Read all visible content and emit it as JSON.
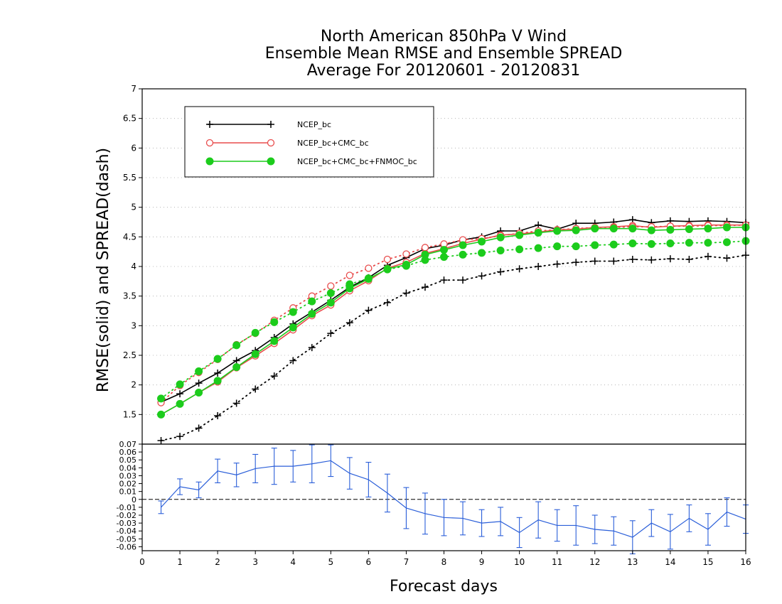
{
  "chart_data": [
    {
      "type": "line",
      "title": [
        "North American 850hPa V Wind",
        "Ensemble Mean RMSE and Ensemble SPREAD",
        "Average For 20120601 - 20120831"
      ],
      "ylabel": "RMSE(solid) and SPREAD(dash)",
      "xlim": [
        0,
        16
      ],
      "ylim": [
        1,
        7
      ],
      "yticks": [
        "1.5",
        "2",
        "2.5",
        "3",
        "3.5",
        "4",
        "4.5",
        "5",
        "5.5",
        "6",
        "6.5",
        "7"
      ],
      "grid": true,
      "legend_position": "top-left",
      "x": [
        0.5,
        1,
        1.5,
        2,
        2.5,
        3,
        3.5,
        4,
        4.5,
        5,
        5.5,
        6,
        6.5,
        7,
        7.5,
        8,
        8.5,
        9,
        9.5,
        10,
        10.5,
        11,
        11.5,
        12,
        12.5,
        13,
        13.5,
        14,
        14.5,
        15,
        15.5,
        16
      ],
      "series": [
        {
          "name": "NCEP_bc",
          "color": "#000000",
          "marker": "plus",
          "rmse": [
            1.71,
            1.85,
            2.03,
            2.2,
            2.41,
            2.58,
            2.8,
            3.03,
            3.23,
            3.43,
            3.65,
            3.81,
            4.02,
            4.15,
            4.3,
            4.36,
            4.45,
            4.5,
            4.6,
            4.6,
            4.7,
            4.63,
            4.73,
            4.73,
            4.75,
            4.79,
            4.74,
            4.77,
            4.76,
            4.77,
            4.76,
            4.74
          ],
          "spread": [
            1.06,
            1.13,
            1.27,
            1.48,
            1.69,
            1.93,
            2.15,
            2.41,
            2.63,
            2.87,
            3.05,
            3.26,
            3.39,
            3.55,
            3.65,
            3.77,
            3.77,
            3.84,
            3.91,
            3.96,
            4.0,
            4.04,
            4.07,
            4.09,
            4.09,
            4.12,
            4.11,
            4.13,
            4.12,
            4.17,
            4.14,
            4.19
          ]
        },
        {
          "name": "NCEP_bc+CMC_bc",
          "color": "#e84c4c",
          "marker": "open-circle",
          "rmse": [
            1.5,
            1.68,
            1.87,
            2.05,
            2.29,
            2.49,
            2.7,
            2.93,
            3.17,
            3.35,
            3.59,
            3.76,
            3.97,
            4.07,
            4.22,
            4.3,
            4.39,
            4.46,
            4.53,
            4.55,
            4.58,
            4.62,
            4.63,
            4.66,
            4.67,
            4.69,
            4.66,
            4.68,
            4.69,
            4.7,
            4.7,
            4.7
          ],
          "spread": [
            1.7,
            1.99,
            2.21,
            2.43,
            2.68,
            2.87,
            3.09,
            3.3,
            3.5,
            3.67,
            3.85,
            3.97,
            4.12,
            4.21,
            4.32,
            4.38,
            4.45,
            4.47,
            4.52,
            4.56,
            4.6,
            4.62,
            4.64,
            4.66,
            4.66,
            4.67,
            4.67,
            4.68,
            4.68,
            4.69,
            4.69,
            4.7
          ]
        },
        {
          "name": "NCEP_bc+CMC_bc+FNMOC_bc",
          "color": "#1ccc1c",
          "marker": "filled-circle",
          "rmse": [
            1.5,
            1.68,
            1.87,
            2.07,
            2.3,
            2.52,
            2.74,
            2.97,
            3.2,
            3.39,
            3.63,
            3.79,
            3.96,
            4.03,
            4.2,
            4.28,
            4.36,
            4.42,
            4.49,
            4.53,
            4.57,
            4.6,
            4.61,
            4.64,
            4.64,
            4.64,
            4.61,
            4.62,
            4.63,
            4.64,
            4.66,
            4.66
          ],
          "spread": [
            1.77,
            2.01,
            2.23,
            2.44,
            2.67,
            2.88,
            3.06,
            3.23,
            3.41,
            3.55,
            3.7,
            3.8,
            3.95,
            4.01,
            4.11,
            4.16,
            4.2,
            4.23,
            4.27,
            4.29,
            4.31,
            4.34,
            4.34,
            4.36,
            4.37,
            4.39,
            4.38,
            4.39,
            4.4,
            4.4,
            4.41,
            4.43
          ]
        }
      ]
    },
    {
      "type": "line",
      "xlabel": "Forecast days",
      "xlim": [
        0,
        16
      ],
      "xticks": [
        "0",
        "1",
        "2",
        "3",
        "4",
        "5",
        "6",
        "7",
        "8",
        "9",
        "10",
        "11",
        "12",
        "13",
        "14",
        "15",
        "16"
      ],
      "ylim": [
        -0.065,
        0.07
      ],
      "yticks": [
        "0.07",
        "0.06",
        "0.05",
        "0.04",
        "0.03",
        "0.02",
        "0.01",
        "0",
        "-0.01",
        "-0.02",
        "-0.03",
        "-0.04",
        "-0.05",
        "-0.06"
      ],
      "zero_line": "dashed",
      "series": [
        {
          "color": "#2b5fd9",
          "x": [
            0.5,
            1,
            1.5,
            2,
            2.5,
            3,
            3.5,
            4,
            4.5,
            5,
            5.5,
            6,
            6.5,
            7,
            7.5,
            8,
            8.5,
            9,
            9.5,
            10,
            10.5,
            11,
            11.5,
            12,
            12.5,
            13,
            13.5,
            14,
            14.5,
            15,
            15.5,
            16
          ],
          "values": [
            -0.01,
            0.016,
            0.012,
            0.036,
            0.031,
            0.039,
            0.042,
            0.042,
            0.045,
            0.049,
            0.033,
            0.025,
            0.008,
            -0.011,
            -0.018,
            -0.023,
            -0.024,
            -0.03,
            -0.028,
            -0.042,
            -0.026,
            -0.033,
            -0.033,
            -0.038,
            -0.04,
            -0.048,
            -0.03,
            -0.041,
            -0.024,
            -0.038,
            -0.016,
            -0.025
          ],
          "error": [
            0.008,
            0.01,
            0.01,
            0.015,
            0.015,
            0.018,
            0.023,
            0.02,
            0.024,
            0.02,
            0.02,
            0.022,
            0.024,
            0.026,
            0.026,
            0.023,
            0.021,
            0.017,
            0.018,
            0.019,
            0.023,
            0.02,
            0.025,
            0.018,
            0.018,
            0.021,
            0.017,
            0.022,
            0.017,
            0.02,
            0.018,
            0.018
          ]
        }
      ]
    }
  ]
}
